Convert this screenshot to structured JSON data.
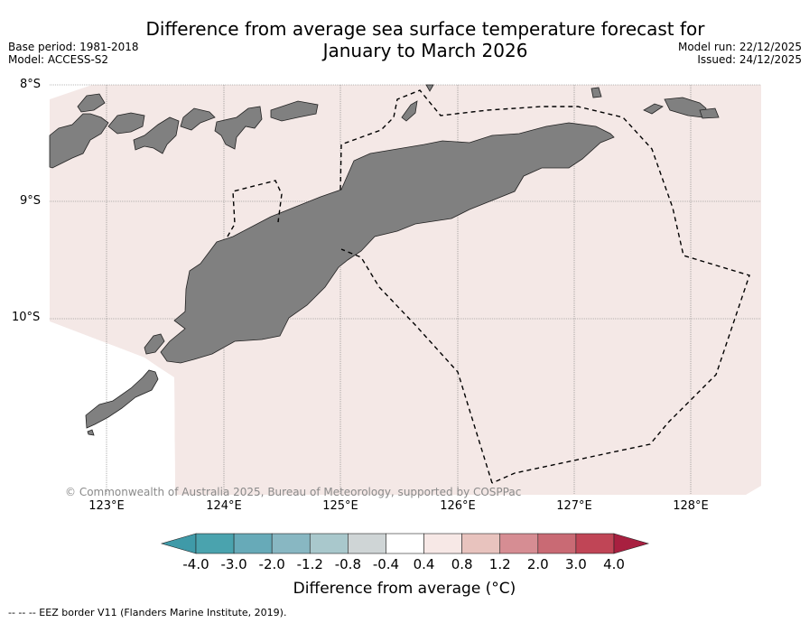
{
  "title_line1": "Difference from average sea surface temperature forecast for",
  "title_line2": "January to March 2026",
  "base_period": "Base period: 1981-2018",
  "model": "Model: ACCESS-S2",
  "model_run": "Model run: 22/12/2025",
  "issued": "Issued: 24/12/2025",
  "lat_labels": [
    "8°S",
    "9°S",
    "10°S"
  ],
  "lon_labels": [
    "123°E",
    "124°E",
    "125°E",
    "126°E",
    "127°E",
    "128°E"
  ],
  "copyright": "© Commonwealth of Australia 2025, Bureau of Meteorology, supported by COSPPac",
  "colorbar": {
    "ticks": [
      "-4.0",
      "-3.0",
      "-2.0",
      "-1.2",
      "-0.8",
      "-0.4",
      "0.4",
      "0.8",
      "1.2",
      "2.0",
      "3.0",
      "4.0"
    ],
    "colors": [
      "#3f9aa8",
      "#4aa3ae",
      "#67aab8",
      "#88b7c2",
      "#a9c8cc",
      "#cfd5d6",
      "#ffffff",
      "#f7e8e6",
      "#e8c3be",
      "#d68d93",
      "#c96a74",
      "#c04556",
      "#a82040"
    ],
    "label": "Difference from average (°C)",
    "map_fill": "#f4e8e6"
  },
  "footnote": "--  --  -- EEZ border V11 (Flanders Marine Institute, 2019).",
  "colors": {
    "land": "#808080",
    "sea_anomaly": "#f4e8e6"
  }
}
